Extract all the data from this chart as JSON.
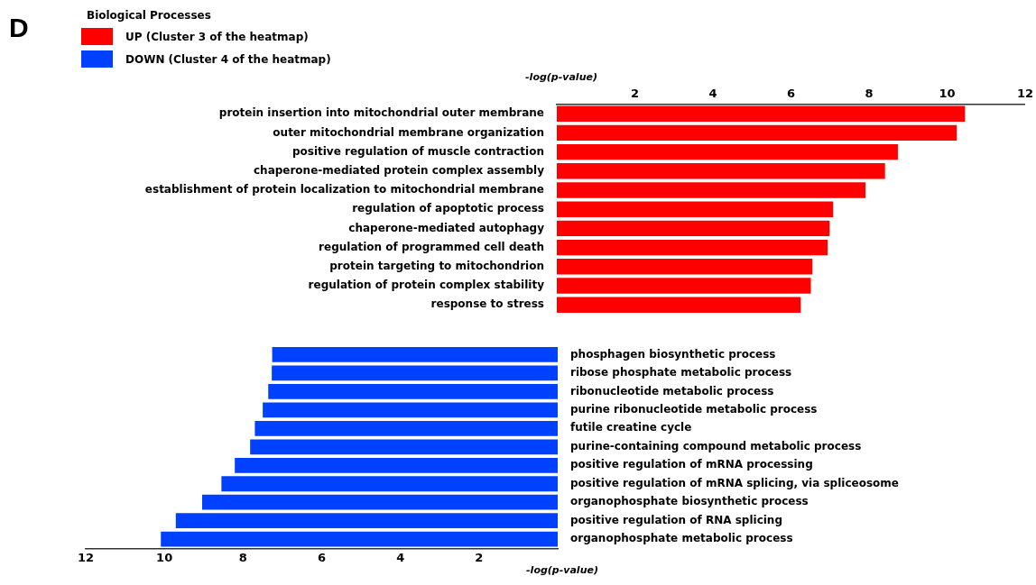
{
  "chart_data": [
    {
      "type": "bar",
      "orientation": "horizontal",
      "legend_title": "Biological Processes",
      "legend": "top left",
      "annotations": [
        "D"
      ],
      "x2label": "-log(p-value)",
      "x2lim": [
        0,
        12
      ],
      "x2ticks": [
        2,
        4,
        6,
        8,
        10,
        12
      ],
      "grid": false,
      "categories": [
        "protein insertion into mitochondrial outer membrane",
        "outer mitochondrial membrane organization",
        "positive regulation of muscle contraction",
        "chaperone-mediated protein complex assembly",
        "establishment of protein localization to mitochondrial membrane",
        "regulation of apoptotic process",
        "chaperone-mediated autophagy",
        "regulation of programmed cell death",
        "protein targeting to mitochondrion",
        "regulation of protein complex stability",
        "response to stress"
      ],
      "series": [
        {
          "name": "UP (Cluster 3 of the heatmap)",
          "color": "#ff0000",
          "axis": "x2",
          "values": [
            10.46,
            10.25,
            8.74,
            8.41,
            7.91,
            7.08,
            6.99,
            6.94,
            6.55,
            6.51,
            6.25
          ]
        }
      ]
    },
    {
      "type": "bar",
      "orientation": "horizontal",
      "legend": "top left",
      "xlabel": "-log(p-value)",
      "xlim": [
        12,
        0
      ],
      "xticks": [
        12,
        10,
        8,
        6,
        4,
        2
      ],
      "grid": false,
      "categories": [
        "phosphagen biosynthetic process",
        "ribose phosphate metabolic process",
        "ribonucleotide metabolic process",
        "purine ribonucleotide metabolic process",
        "futile creatine cycle",
        "purine-containing compound metabolic process",
        "positive regulation of mRNA processing",
        "positive regulation of mRNA splicing, via spliceosome",
        "organophosphate biosynthetic process",
        "positive regulation of RNA splicing",
        "organophosphate metabolic process"
      ],
      "series": [
        {
          "name": "DOWN (Cluster 4 of the heatmap)",
          "color": "#0040ff",
          "values": [
            7.26,
            7.27,
            7.36,
            7.5,
            7.7,
            7.82,
            8.21,
            8.55,
            9.04,
            9.71,
            10.09
          ]
        }
      ]
    }
  ]
}
